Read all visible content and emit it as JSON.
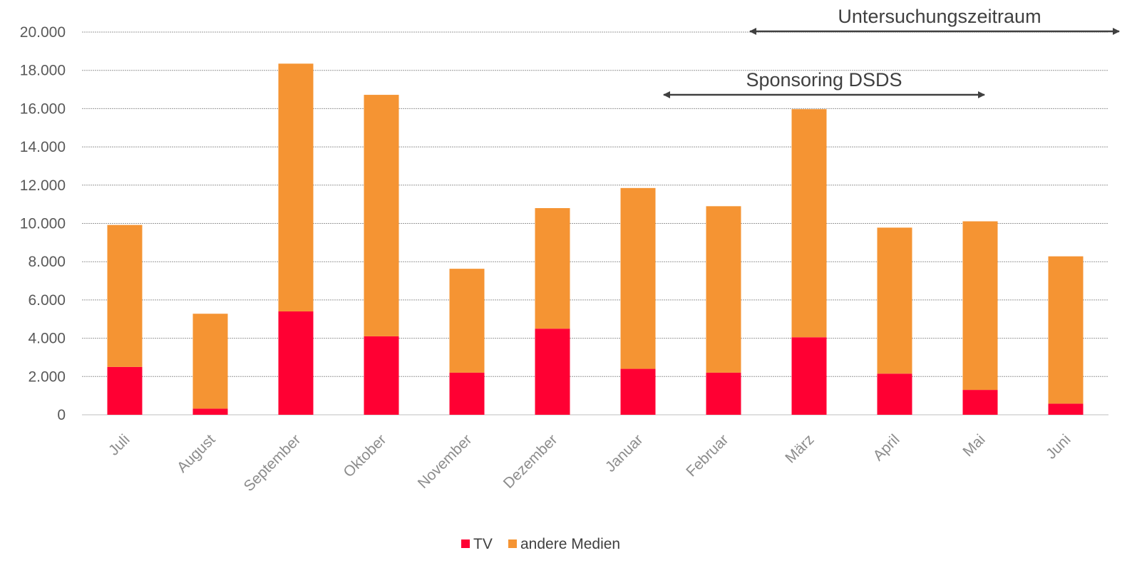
{
  "chart_data": {
    "type": "bar",
    "stacked": true,
    "categories": [
      "Juli",
      "August",
      "September",
      "Oktober",
      "November",
      "Dezember",
      "Januar",
      "Februar",
      "März",
      "April",
      "Mai",
      "Juni"
    ],
    "series": [
      {
        "name": "TV",
        "color": "#ff0033",
        "values": [
          2500,
          320,
          5400,
          4100,
          2200,
          4500,
          2400,
          2200,
          4050,
          2150,
          1300,
          580
        ]
      },
      {
        "name": "andere Medien",
        "color": "#f59433",
        "values": [
          7420,
          4960,
          12950,
          12620,
          5430,
          6300,
          9450,
          8700,
          11920,
          7630,
          8810,
          7700
        ]
      }
    ],
    "ylim": [
      0,
      20000
    ],
    "yticks": [
      0,
      2000,
      4000,
      6000,
      8000,
      10000,
      12000,
      14000,
      16000,
      18000,
      20000
    ],
    "ytick_labels": [
      "0",
      "2.000",
      "4.000",
      "6.000",
      "8.000",
      "10.000",
      "12.000",
      "14.000",
      "16.000",
      "18.000",
      "20.000"
    ],
    "grid": true,
    "legend_position": "bottom",
    "annotations": [
      {
        "text": "Untersuchungszeitraum",
        "from": "März",
        "to": "Juni"
      },
      {
        "text": "Sponsoring DSDS",
        "from": "Januar",
        "to": "Mai"
      }
    ]
  }
}
